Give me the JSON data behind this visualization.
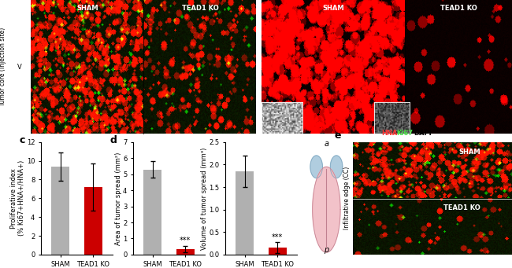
{
  "panel_c": {
    "categories": [
      "SHAM",
      "TEAD1 KO"
    ],
    "values": [
      9.4,
      7.2
    ],
    "errors": [
      1.5,
      2.5
    ],
    "colors": [
      "#b0b0b0",
      "#cc0000"
    ],
    "ylabel": "(% Ki67+HNA+/HNA+)",
    "ylabel2": "Proliferative index",
    "yticks": [
      0,
      2,
      4,
      6,
      8,
      10,
      12
    ],
    "ylim": [
      0,
      12
    ]
  },
  "panel_d_area": {
    "categories": [
      "SHAM",
      "TEAD1 KO"
    ],
    "values": [
      5.3,
      0.35
    ],
    "errors": [
      0.5,
      0.2
    ],
    "colors": [
      "#b0b0b0",
      "#cc0000"
    ],
    "ylabel": "Area of tumor spread (mm²)",
    "yticks": [
      0,
      1,
      2,
      3,
      4,
      5,
      6,
      7
    ],
    "ylim": [
      0,
      7
    ],
    "sig": "***"
  },
  "panel_d_volume": {
    "categories": [
      "SHAM",
      "TEAD1 KO"
    ],
    "values": [
      1.85,
      0.15
    ],
    "errors": [
      0.35,
      0.12
    ],
    "colors": [
      "#b0b0b0",
      "#cc0000"
    ],
    "ylabel": "Volume of tumor spread (mm³)",
    "yticks": [
      0,
      0.5,
      1.0,
      1.5,
      2.0,
      2.5
    ],
    "ylim": [
      0,
      2.5
    ],
    "sig": "***"
  },
  "label_fontsize": 9,
  "tick_fontsize": 6,
  "axis_label_fontsize": 6,
  "cat_label_fontsize": 6,
  "sig_fontsize": 7,
  "bg_color": "#ffffff"
}
